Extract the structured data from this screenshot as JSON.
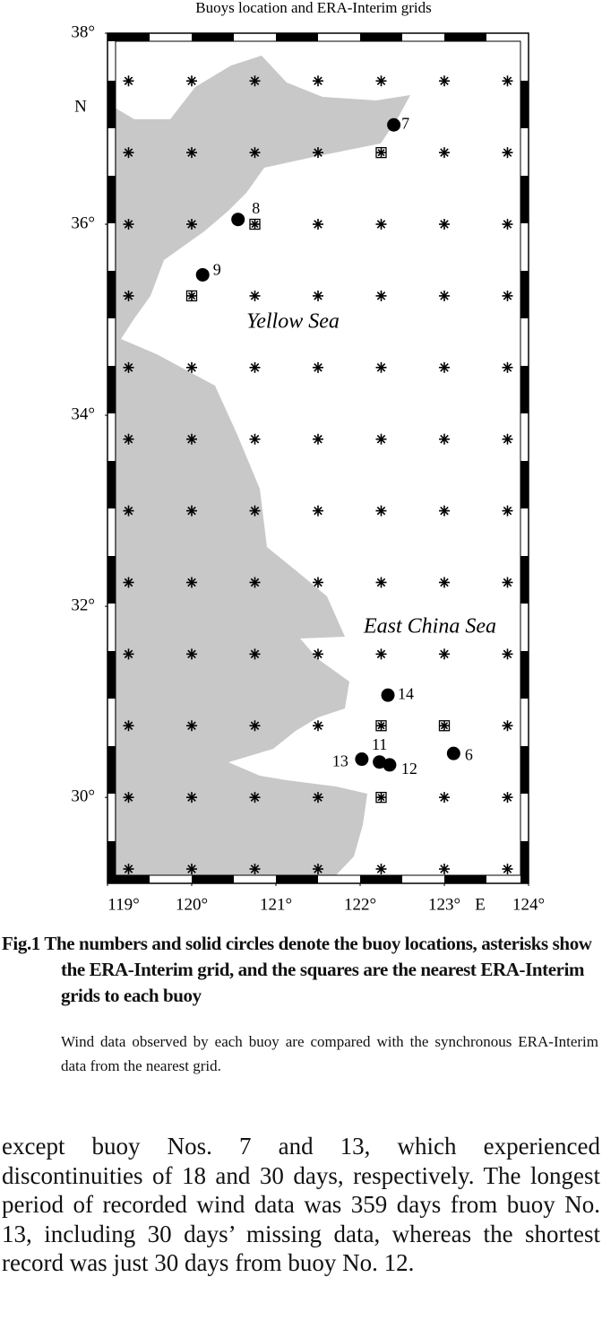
{
  "figure": {
    "title": "Buoys location and ERA-Interim grids",
    "xlim": [
      119,
      124
    ],
    "ylim": [
      29.1,
      38
    ],
    "xticks": [
      {
        "value": 119,
        "label": "119°"
      },
      {
        "value": 120,
        "label": "120°"
      },
      {
        "value": 121,
        "label": "121°"
      },
      {
        "value": 122,
        "label": "122°"
      },
      {
        "value": 123,
        "label": "123°"
      },
      {
        "value": 124,
        "label": "124°"
      }
    ],
    "yticks": [
      {
        "value": 38,
        "label": "38°"
      },
      {
        "value": 36,
        "label": "36°"
      },
      {
        "value": 34,
        "label": "34°"
      },
      {
        "value": 32,
        "label": "32°"
      },
      {
        "value": 30,
        "label": "30°"
      }
    ],
    "x_axis_label": "E",
    "y_axis_label": "N",
    "annotations": [
      "Yellow Sea",
      "East China Sea"
    ],
    "grid_lon": [
      119.25,
      120,
      120.75,
      121.5,
      122.25,
      123,
      123.75
    ],
    "grid_lat": [
      37.5,
      36.75,
      36,
      35.25,
      34.5,
      33.75,
      33,
      32.25,
      31.5,
      30.75,
      30,
      29.25
    ],
    "nearest_grids": [
      {
        "lon": 122.25,
        "lat": 36.75
      },
      {
        "lon": 120.75,
        "lat": 36
      },
      {
        "lon": 120,
        "lat": 35.25
      },
      {
        "lon": 122.25,
        "lat": 30.75
      },
      {
        "lon": 123,
        "lat": 30.75
      },
      {
        "lon": 122.25,
        "lat": 30
      }
    ],
    "buoys": [
      {
        "label": "7",
        "lon": 122.4,
        "lat": 37.04
      },
      {
        "label": "8",
        "lon": 120.55,
        "lat": 36.05
      },
      {
        "label": "9",
        "lon": 120.13,
        "lat": 35.47
      },
      {
        "label": "14",
        "lon": 122.33,
        "lat": 31.07
      },
      {
        "label": "11",
        "lon": 122.23,
        "lat": 30.37
      },
      {
        "label": "12",
        "lon": 122.35,
        "lat": 30.34
      },
      {
        "label": "13",
        "lon": 122.02,
        "lat": 30.4
      },
      {
        "label": "6",
        "lon": 123.11,
        "lat": 30.46
      }
    ],
    "caption": "Fig.1 The numbers and solid circles denote the buoy locations, asterisks show the ERA-Interim grid, and the squares are the nearest ERA-Interim grids to each buoy",
    "note": "Wind data observed by each buoy are compared with the synchronous ERA-Interim data from the nearest grid."
  },
  "body_text": "except buoy Nos. 7 and 13, which experienced discontinuities of 18 and 30 days, respectively. The longest period of recorded wind data was 359 days from buoy No. 13, including 30 days’ missing data, whereas the shortest record was just 30 days from buoy No. 12."
}
